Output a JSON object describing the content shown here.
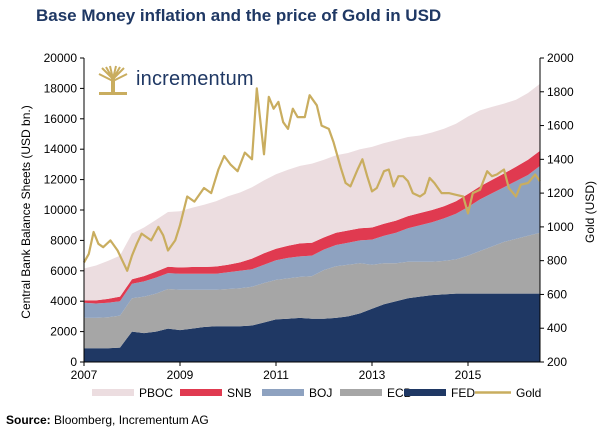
{
  "title": "Base Money inflation and the price of Gold in USD",
  "logo": {
    "text": "incrementum",
    "icon": "tree-logo-icon"
  },
  "source": {
    "label": "Source:",
    "text": " Bloomberg, Incrementum AG"
  },
  "chart_data": {
    "type": "area",
    "title": "Base Money inflation and the price of Gold in USD",
    "ylabel": "Central Bank Balance Sheets (USD bn.)",
    "y2label": "Gold (USD)",
    "xlim": [
      2007.0,
      2016.5
    ],
    "ylim": [
      0,
      20000
    ],
    "y2lim": [
      200,
      2000
    ],
    "xticks": [
      "2007",
      "2009",
      "2011",
      "2013",
      "2015"
    ],
    "yticks": [
      "0",
      "2000",
      "4000",
      "6000",
      "8000",
      "10000",
      "12000",
      "14000",
      "16000",
      "18000",
      "20000"
    ],
    "y2ticks": [
      "200",
      "400",
      "600",
      "800",
      "1000",
      "1200",
      "1400",
      "1600",
      "1800",
      "2000"
    ],
    "legend_position": "bottom",
    "x": [
      2007.0,
      2007.25,
      2007.5,
      2007.75,
      2008.0,
      2008.25,
      2008.5,
      2008.75,
      2009.0,
      2009.25,
      2009.5,
      2009.75,
      2010.0,
      2010.25,
      2010.5,
      2010.75,
      2011.0,
      2011.25,
      2011.5,
      2011.75,
      2012.0,
      2012.25,
      2012.5,
      2012.75,
      2013.0,
      2013.25,
      2013.5,
      2013.75,
      2014.0,
      2014.25,
      2014.5,
      2014.75,
      2015.0,
      2015.25,
      2015.5,
      2015.75,
      2016.0,
      2016.25,
      2016.5
    ],
    "series": [
      {
        "name": "FED",
        "color": "#1f3864",
        "values": [
          900,
          900,
          900,
          950,
          2000,
          1900,
          2000,
          2200,
          2100,
          2200,
          2300,
          2350,
          2350,
          2350,
          2400,
          2600,
          2800,
          2850,
          2900,
          2850,
          2850,
          2900,
          3000,
          3200,
          3500,
          3800,
          4000,
          4200,
          4300,
          4400,
          4450,
          4500,
          4500,
          4500,
          4500,
          4500,
          4500,
          4500,
          4500
        ]
      },
      {
        "name": "ECB",
        "color": "#a6a6a6",
        "values": [
          2000,
          2000,
          2050,
          2100,
          2200,
          2400,
          2500,
          2600,
          2650,
          2550,
          2450,
          2400,
          2450,
          2500,
          2550,
          2600,
          2600,
          2650,
          2700,
          2800,
          3200,
          3400,
          3400,
          3300,
          2900,
          2700,
          2500,
          2400,
          2300,
          2200,
          2200,
          2250,
          2500,
          2800,
          3100,
          3400,
          3600,
          3800,
          4000
        ]
      },
      {
        "name": "BOJ",
        "color": "#8ea2c0",
        "values": [
          1000,
          950,
          950,
          950,
          950,
          1000,
          1050,
          1050,
          1050,
          1050,
          1050,
          1050,
          1100,
          1150,
          1150,
          1200,
          1300,
          1350,
          1350,
          1350,
          1350,
          1400,
          1450,
          1500,
          1650,
          1800,
          2000,
          2200,
          2400,
          2600,
          2800,
          3000,
          3200,
          3400,
          3500,
          3600,
          3800,
          4000,
          4400
        ]
      },
      {
        "name": "SNB",
        "color": "#e03a50",
        "values": [
          150,
          200,
          250,
          300,
          300,
          350,
          400,
          420,
          420,
          450,
          450,
          480,
          500,
          550,
          700,
          750,
          750,
          800,
          850,
          850,
          800,
          800,
          800,
          800,
          800,
          800,
          800,
          800,
          800,
          800,
          800,
          820,
          850,
          850,
          880,
          900,
          950,
          1000,
          1000
        ]
      },
      {
        "name": "PBOC",
        "color": "#ecdde0",
        "values": [
          2100,
          2300,
          2500,
          2700,
          3000,
          3200,
          3400,
          3600,
          3700,
          3900,
          4100,
          4300,
          4500,
          4600,
          4700,
          4800,
          4900,
          5000,
          5100,
          5200,
          5100,
          5100,
          5100,
          5200,
          5300,
          5300,
          5300,
          5200,
          5100,
          5100,
          5100,
          5100,
          5100,
          5000,
          4800,
          4600,
          4400,
          4400,
          4400
        ]
      }
    ],
    "gold": {
      "name": "Gold",
      "color": "#c9ad5f",
      "x": [
        2007.0,
        2007.1,
        2007.2,
        2007.3,
        2007.4,
        2007.55,
        2007.7,
        2007.8,
        2007.9,
        2008.0,
        2008.1,
        2008.2,
        2008.4,
        2008.55,
        2008.65,
        2008.75,
        2008.9,
        2009.0,
        2009.15,
        2009.3,
        2009.5,
        2009.65,
        2009.8,
        2009.92,
        2010.05,
        2010.2,
        2010.35,
        2010.5,
        2010.6,
        2010.75,
        2010.85,
        2010.95,
        2011.05,
        2011.15,
        2011.25,
        2011.35,
        2011.45,
        2011.6,
        2011.7,
        2011.85,
        2011.95,
        2012.1,
        2012.2,
        2012.35,
        2012.45,
        2012.55,
        2012.7,
        2012.8,
        2012.9,
        2013.0,
        2013.1,
        2013.25,
        2013.35,
        2013.45,
        2013.55,
        2013.65,
        2013.75,
        2013.85,
        2014.0,
        2014.1,
        2014.2,
        2014.3,
        2014.45,
        2014.6,
        2014.75,
        2014.9,
        2015.0,
        2015.1,
        2015.25,
        2015.4,
        2015.5,
        2015.6,
        2015.75,
        2015.85,
        2016.0,
        2016.1,
        2016.25,
        2016.4,
        2016.5
      ],
      "values": [
        790,
        840,
        970,
        900,
        880,
        920,
        860,
        800,
        740,
        830,
        900,
        960,
        920,
        1000,
        950,
        860,
        920,
        1010,
        1180,
        1150,
        1230,
        1200,
        1340,
        1420,
        1370,
        1330,
        1440,
        1400,
        1820,
        1430,
        1770,
        1700,
        1740,
        1620,
        1580,
        1700,
        1650,
        1650,
        1780,
        1720,
        1600,
        1580,
        1500,
        1350,
        1260,
        1240,
        1340,
        1400,
        1300,
        1210,
        1230,
        1330,
        1340,
        1240,
        1300,
        1300,
        1270,
        1200,
        1180,
        1200,
        1290,
        1260,
        1200,
        1200,
        1190,
        1180,
        1080,
        1200,
        1220,
        1330,
        1300,
        1310,
        1340,
        1230,
        1180,
        1250,
        1260,
        1310,
        1270
      ]
    }
  }
}
